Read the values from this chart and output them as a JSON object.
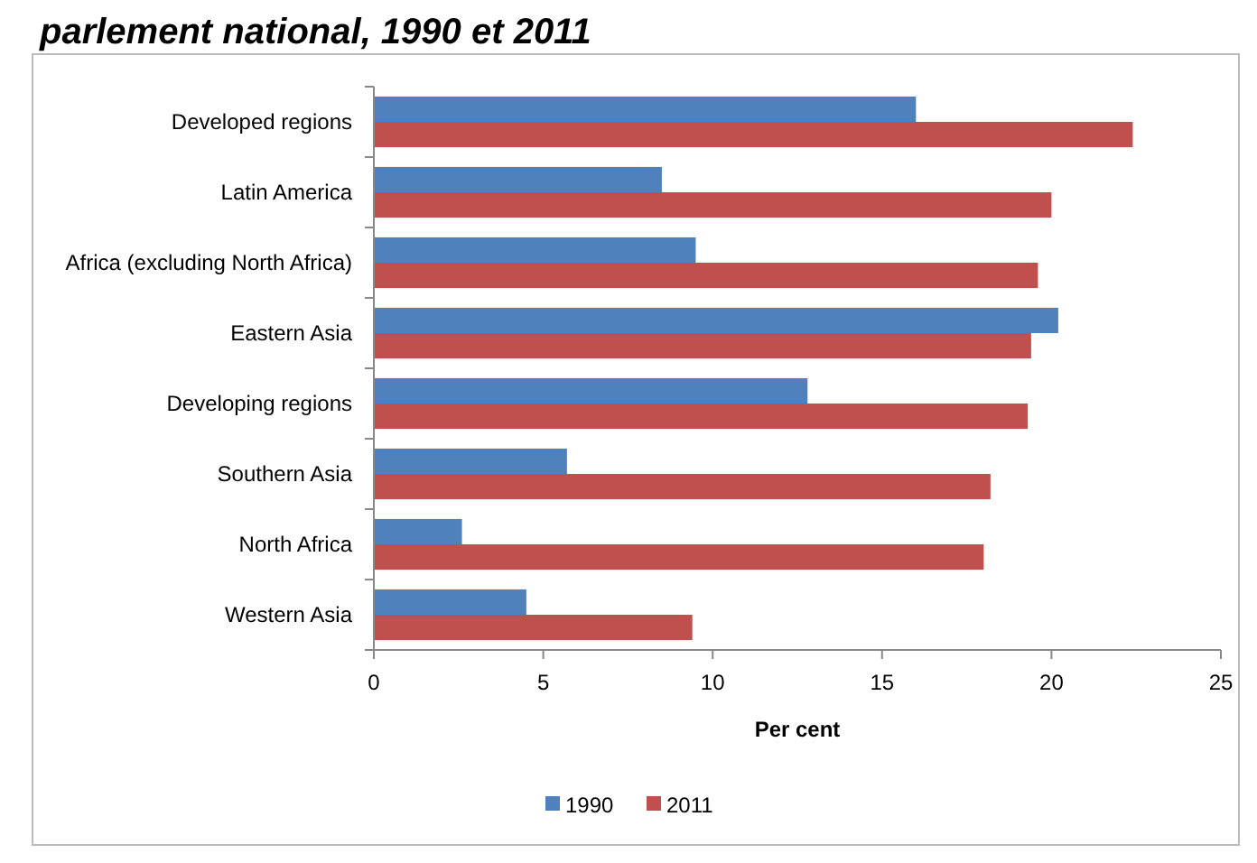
{
  "chart_data": {
    "type": "bar",
    "orientation": "horizontal",
    "title": "parlement national, 1990 et 2011",
    "xlabel": "Per cent",
    "categories": [
      "Developed regions",
      "Latin America",
      "Africa (excluding North Africa)",
      "Eastern Asia",
      "Developing regions",
      "Southern Asia",
      "North Africa",
      "Western Asia"
    ],
    "series": [
      {
        "name": "1990",
        "color": "#4f81bd",
        "values": [
          16.0,
          8.5,
          9.5,
          20.2,
          12.8,
          5.7,
          2.6,
          4.5
        ]
      },
      {
        "name": "2011",
        "color": "#c0504d",
        "values": [
          22.4,
          20.0,
          19.6,
          19.4,
          19.3,
          18.2,
          18.0,
          9.4
        ]
      }
    ],
    "xlim": [
      0,
      25
    ],
    "xticks": [
      0,
      5,
      10,
      15,
      20,
      25
    ],
    "legend": "bottom",
    "grid": false
  }
}
